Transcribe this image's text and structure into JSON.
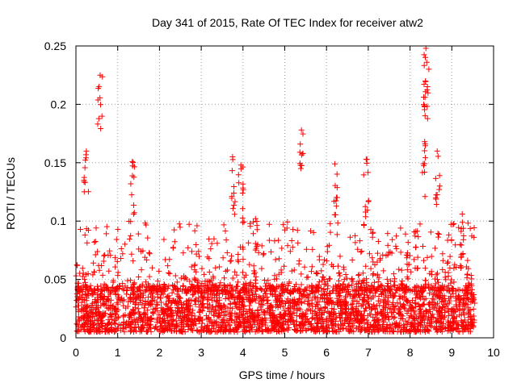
{
  "chart_data": {
    "type": "scatter",
    "title": "Day 341 of 2015, Rate Of TEC Index for receiver atw2",
    "xlabel": "GPS time / hours",
    "ylabel": "ROTI / TECUs",
    "xlim": [
      0,
      10
    ],
    "ylim": [
      0,
      0.25
    ],
    "xticks": [
      0,
      1,
      2,
      3,
      4,
      5,
      6,
      7,
      8,
      9,
      10
    ],
    "yticks": [
      0,
      0.05,
      0.1,
      0.15,
      0.2,
      0.25
    ],
    "xtick_labels": [
      "0",
      "1",
      "2",
      "3",
      "4",
      "5",
      "6",
      "7",
      "8",
      "9",
      "10"
    ],
    "ytick_labels": [
      "0",
      "0.05",
      "0.1",
      "0.15",
      "0.2",
      "0.25"
    ],
    "grid": true,
    "marker": "+",
    "color": "#ff0000",
    "series": [
      {
        "name": "ROTI",
        "x_range": [
          0.0,
          9.55
        ],
        "baseline_band": [
          0.005,
          0.045
        ],
        "notable_points": [
          {
            "x": 0.58,
            "y": 0.225
          },
          {
            "x": 8.38,
            "y": 0.248
          },
          {
            "x": 8.4,
            "y": 0.236
          },
          {
            "x": 0.25,
            "y": 0.16
          },
          {
            "x": 1.35,
            "y": 0.151
          },
          {
            "x": 3.75,
            "y": 0.155
          },
          {
            "x": 3.95,
            "y": 0.148
          },
          {
            "x": 5.4,
            "y": 0.178
          },
          {
            "x": 6.95,
            "y": 0.153
          },
          {
            "x": 8.35,
            "y": 0.168
          },
          {
            "x": 8.65,
            "y": 0.16
          },
          {
            "x": 6.2,
            "y": 0.149
          },
          {
            "x": 2.9,
            "y": 0.096
          },
          {
            "x": 4.3,
            "y": 0.102
          },
          {
            "x": 9.25,
            "y": 0.106
          }
        ]
      }
    ]
  }
}
